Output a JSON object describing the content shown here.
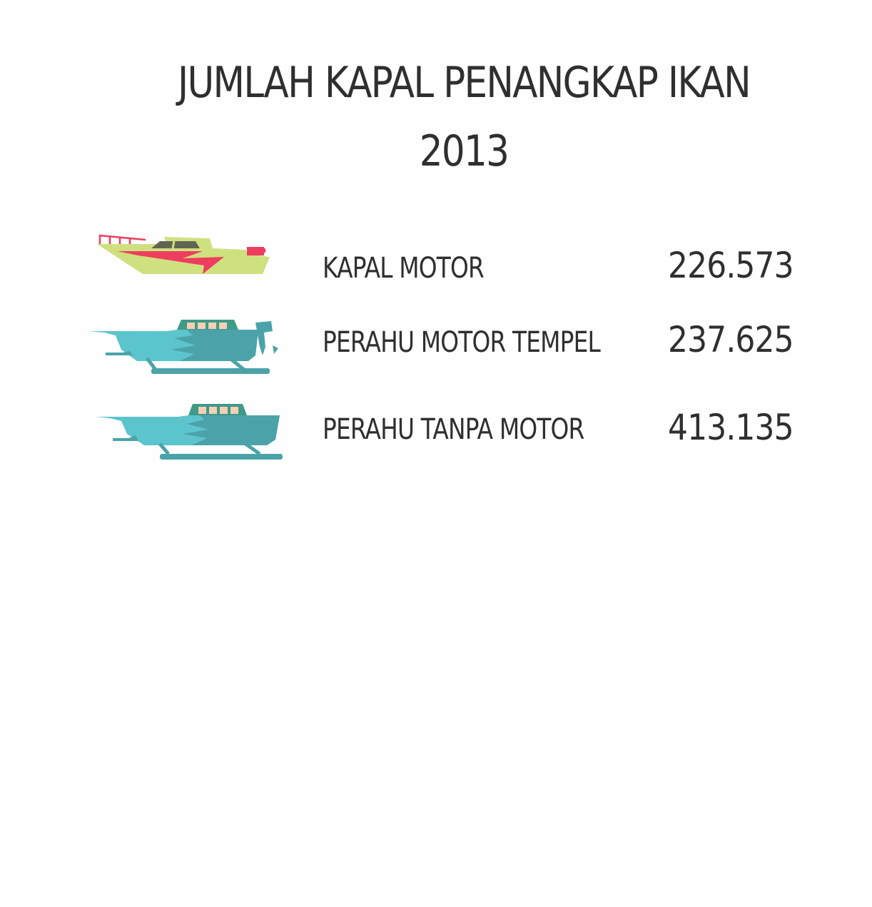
{
  "chart_data": {
    "type": "table",
    "title_line1": "JUMLAH KAPAL PENANGKAP IKAN",
    "title_line2": "2013",
    "colors": {
      "speedboat_hull": "#cfe07f",
      "speedboat_stripe": "#ee3d5e",
      "outrigger_light": "#5cc4cd",
      "outrigger_dark": "#4ba3a9",
      "cabin": "#3f9a88",
      "window": "#f6cfb5"
    },
    "rows": [
      {
        "label": "KAPAL MOTOR",
        "value": "226.573",
        "icon": "speedboat-icon"
      },
      {
        "label": "PERAHU MOTOR TEMPEL",
        "value": "237.625",
        "icon": "outboard-outrigger-boat-icon"
      },
      {
        "label": "PERAHU TANPA MOTOR",
        "value": "413.135",
        "icon": "outrigger-boat-icon"
      }
    ]
  }
}
